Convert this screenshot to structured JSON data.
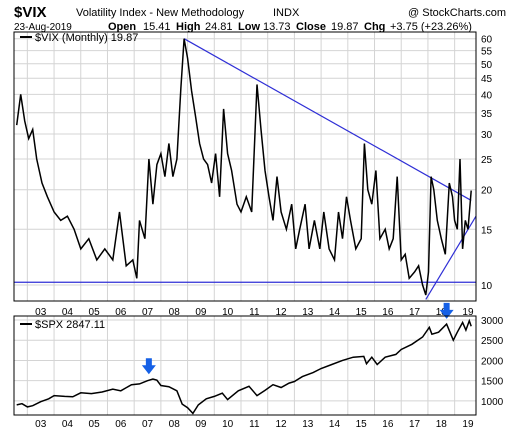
{
  "header": {
    "symbol": "$VIX",
    "name": "Volatility Index - New Methodology",
    "exchange": "INDX",
    "watermark": "@ StockCharts.com",
    "date": "23-Aug-2019",
    "open_label": "Open",
    "open": "15.41",
    "high_label": "High",
    "high": "24.81",
    "low_label": "Low",
    "low": "13.73",
    "close_label": "Close",
    "close": "19.87",
    "chg_label": "Chg",
    "chg": "+3.75 (+23.26%)"
  },
  "colors": {
    "price_line": "#000000",
    "trendline": "#2f2fd6",
    "arrow": "#1560e6",
    "grid": "#d4d4d4",
    "frame": "#000000"
  },
  "chart_data": [
    {
      "type": "line",
      "legend": "$VIX (Monthly) 19.87",
      "scale": "log",
      "ylim": [
        8.9,
        63
      ],
      "y_ticks": [
        10,
        15,
        20,
        25,
        30,
        35,
        40,
        45,
        50,
        55,
        60
      ],
      "x_ticks": [
        "03",
        "04",
        "05",
        "06",
        "07",
        "08",
        "09",
        "10",
        "11",
        "12",
        "13",
        "14",
        "15",
        "16",
        "17",
        "18",
        "19"
      ],
      "xlim": [
        2002.5,
        2019.8
      ],
      "series": [
        {
          "values": [
            [
              2002.6,
              32
            ],
            [
              2002.75,
              40
            ],
            [
              2002.9,
              33
            ],
            [
              2003.05,
              29
            ],
            [
              2003.2,
              31
            ],
            [
              2003.35,
              25
            ],
            [
              2003.55,
              21
            ],
            [
              2003.75,
              19
            ],
            [
              2004.0,
              17
            ],
            [
              2004.25,
              16
            ],
            [
              2004.5,
              16.5
            ],
            [
              2004.75,
              15
            ],
            [
              2005.0,
              13
            ],
            [
              2005.3,
              14
            ],
            [
              2005.6,
              12
            ],
            [
              2005.9,
              13
            ],
            [
              2006.2,
              12
            ],
            [
              2006.45,
              17
            ],
            [
              2006.7,
              11.5
            ],
            [
              2006.95,
              12
            ],
            [
              2007.1,
              10.5
            ],
            [
              2007.2,
              16
            ],
            [
              2007.4,
              14
            ],
            [
              2007.55,
              25
            ],
            [
              2007.7,
              18
            ],
            [
              2007.85,
              24
            ],
            [
              2008.0,
              26
            ],
            [
              2008.15,
              22
            ],
            [
              2008.3,
              28
            ],
            [
              2008.45,
              22
            ],
            [
              2008.6,
              25
            ],
            [
              2008.75,
              42
            ],
            [
              2008.87,
              60
            ],
            [
              2009.0,
              52
            ],
            [
              2009.15,
              41
            ],
            [
              2009.3,
              34
            ],
            [
              2009.45,
              28
            ],
            [
              2009.6,
              25
            ],
            [
              2009.75,
              24
            ],
            [
              2009.9,
              21
            ],
            [
              2010.05,
              26
            ],
            [
              2010.2,
              19
            ],
            [
              2010.35,
              36
            ],
            [
              2010.5,
              26
            ],
            [
              2010.65,
              23
            ],
            [
              2010.85,
              18
            ],
            [
              2011.0,
              17
            ],
            [
              2011.2,
              19
            ],
            [
              2011.4,
              17
            ],
            [
              2011.6,
              43
            ],
            [
              2011.75,
              31
            ],
            [
              2011.9,
              23
            ],
            [
              2012.05,
              19
            ],
            [
              2012.2,
              16
            ],
            [
              2012.35,
              22
            ],
            [
              2012.5,
              17
            ],
            [
              2012.7,
              15
            ],
            [
              2012.9,
              18
            ],
            [
              2013.05,
              13
            ],
            [
              2013.2,
              15
            ],
            [
              2013.4,
              18
            ],
            [
              2013.55,
              13
            ],
            [
              2013.75,
              16
            ],
            [
              2013.95,
              13
            ],
            [
              2014.1,
              17
            ],
            [
              2014.3,
              13
            ],
            [
              2014.5,
              12
            ],
            [
              2014.65,
              17
            ],
            [
              2014.8,
              14
            ],
            [
              2014.95,
              19
            ],
            [
              2015.1,
              16
            ],
            [
              2015.3,
              13
            ],
            [
              2015.5,
              14
            ],
            [
              2015.62,
              28
            ],
            [
              2015.75,
              20
            ],
            [
              2015.9,
              18
            ],
            [
              2016.05,
              23
            ],
            [
              2016.2,
              14
            ],
            [
              2016.4,
              15
            ],
            [
              2016.55,
              13
            ],
            [
              2016.7,
              14
            ],
            [
              2016.85,
              22
            ],
            [
              2017.0,
              12
            ],
            [
              2017.15,
              12.5
            ],
            [
              2017.3,
              10.5
            ],
            [
              2017.5,
              11
            ],
            [
              2017.65,
              11.5
            ],
            [
              2017.8,
              10
            ],
            [
              2017.92,
              9.3
            ],
            [
              2018.02,
              11
            ],
            [
              2018.12,
              22
            ],
            [
              2018.22,
              20
            ],
            [
              2018.35,
              16
            ],
            [
              2018.5,
              14
            ],
            [
              2018.65,
              12.5
            ],
            [
              2018.8,
              21
            ],
            [
              2018.92,
              19
            ],
            [
              2019.0,
              16
            ],
            [
              2019.1,
              15
            ],
            [
              2019.2,
              25
            ],
            [
              2019.3,
              13
            ],
            [
              2019.4,
              16
            ],
            [
              2019.5,
              15
            ],
            [
              2019.62,
              19.87
            ]
          ]
        }
      ],
      "trendlines": [
        {
          "from": [
            2008.87,
            60
          ],
          "to": [
            2019.62,
            18.5
          ]
        },
        {
          "from": [
            2017.92,
            9.0
          ],
          "to": [
            2019.8,
            16.5
          ]
        },
        {
          "from": [
            2002.5,
            10.2
          ],
          "to": [
            2019.8,
            10.2
          ]
        }
      ]
    },
    {
      "type": "line",
      "legend": "$SPX 2847.11",
      "ylim": [
        650,
        3100
      ],
      "y_ticks": [
        1000,
        1500,
        2000,
        2500,
        3000
      ],
      "x_ticks": [
        "03",
        "04",
        "05",
        "06",
        "07",
        "08",
        "09",
        "10",
        "11",
        "12",
        "13",
        "14",
        "15",
        "16",
        "17",
        "18",
        "19"
      ],
      "xlim": [
        2002.5,
        2019.8
      ],
      "series": [
        {
          "values": [
            [
              2002.6,
              900
            ],
            [
              2002.8,
              930
            ],
            [
              2003.0,
              850
            ],
            [
              2003.2,
              880
            ],
            [
              2003.5,
              980
            ],
            [
              2003.8,
              1050
            ],
            [
              2004.0,
              1130
            ],
            [
              2004.4,
              1110
            ],
            [
              2004.7,
              1100
            ],
            [
              2005.0,
              1200
            ],
            [
              2005.4,
              1180
            ],
            [
              2005.8,
              1220
            ],
            [
              2006.2,
              1290
            ],
            [
              2006.5,
              1250
            ],
            [
              2006.9,
              1400
            ],
            [
              2007.2,
              1420
            ],
            [
              2007.5,
              1500
            ],
            [
              2007.7,
              1540
            ],
            [
              2007.85,
              1510
            ],
            [
              2008.0,
              1380
            ],
            [
              2008.3,
              1350
            ],
            [
              2008.6,
              1250
            ],
            [
              2008.8,
              920
            ],
            [
              2009.0,
              830
            ],
            [
              2009.2,
              690
            ],
            [
              2009.4,
              900
            ],
            [
              2009.7,
              1050
            ],
            [
              2010.0,
              1110
            ],
            [
              2010.3,
              1190
            ],
            [
              2010.5,
              1030
            ],
            [
              2010.9,
              1250
            ],
            [
              2011.3,
              1360
            ],
            [
              2011.6,
              1130
            ],
            [
              2011.9,
              1260
            ],
            [
              2012.2,
              1400
            ],
            [
              2012.5,
              1330
            ],
            [
              2012.8,
              1440
            ],
            [
              2013.0,
              1480
            ],
            [
              2013.3,
              1600
            ],
            [
              2013.7,
              1700
            ],
            [
              2014.0,
              1800
            ],
            [
              2014.4,
              1900
            ],
            [
              2014.8,
              2000
            ],
            [
              2015.2,
              2080
            ],
            [
              2015.6,
              2100
            ],
            [
              2015.7,
              1920
            ],
            [
              2015.9,
              2080
            ],
            [
              2016.1,
              1900
            ],
            [
              2016.4,
              2080
            ],
            [
              2016.8,
              2150
            ],
            [
              2017.0,
              2270
            ],
            [
              2017.4,
              2400
            ],
            [
              2017.8,
              2580
            ],
            [
              2018.05,
              2820
            ],
            [
              2018.15,
              2650
            ],
            [
              2018.4,
              2700
            ],
            [
              2018.7,
              2900
            ],
            [
              2018.95,
              2500
            ],
            [
              2019.1,
              2700
            ],
            [
              2019.3,
              2940
            ],
            [
              2019.42,
              2750
            ],
            [
              2019.55,
              2980
            ],
            [
              2019.62,
              2847
            ]
          ]
        }
      ],
      "markers": [
        {
          "type": "arrow-down",
          "x": 2007.55,
          "y": 1560
        },
        {
          "type": "arrow-down",
          "x": 2018.7,
          "y": 2930
        }
      ]
    }
  ]
}
